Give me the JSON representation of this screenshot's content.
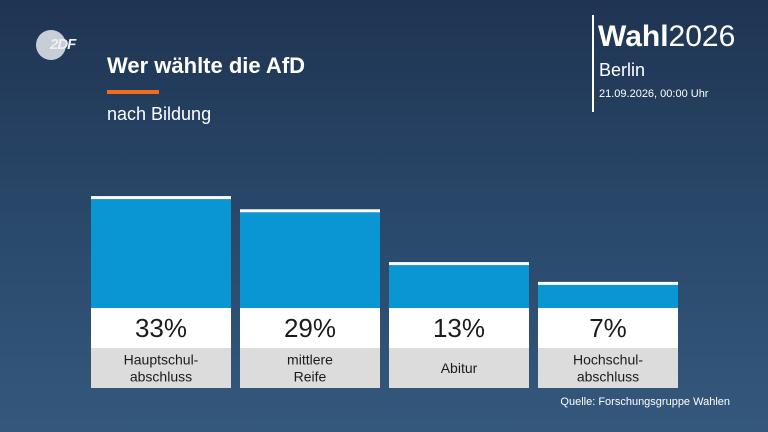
{
  "header": {
    "logo_text": "2DF",
    "title": "Wer wählte die AfD",
    "subtitle": "nach Bildung"
  },
  "branding": {
    "prefix": "Wahl",
    "year": "2026",
    "region": "Berlin",
    "timestamp": "21.09.2026, 00:00 Uhr"
  },
  "footer": {
    "source": "Quelle: Forschungsgruppe Wahlen"
  },
  "colors": {
    "bar": "#0a96d2",
    "bar_cap": "#ffffff",
    "value_box": "#ffffff",
    "label_box": "#dcdcdc",
    "accent": "#f26b1d"
  },
  "chart_data": {
    "type": "bar",
    "categories": [
      "Hauptschul-\nabschluss",
      "mittlere\nReife",
      "Abitur",
      "Hochschul-\nabschluss"
    ],
    "values": [
      33,
      29,
      13,
      7
    ],
    "value_labels": [
      "33%",
      "29%",
      "13%",
      "7%"
    ],
    "title": "Wer wählte die AfD",
    "subtitle": "nach Bildung",
    "xlabel": "",
    "ylabel": "",
    "unit": "%",
    "grid": false
  }
}
